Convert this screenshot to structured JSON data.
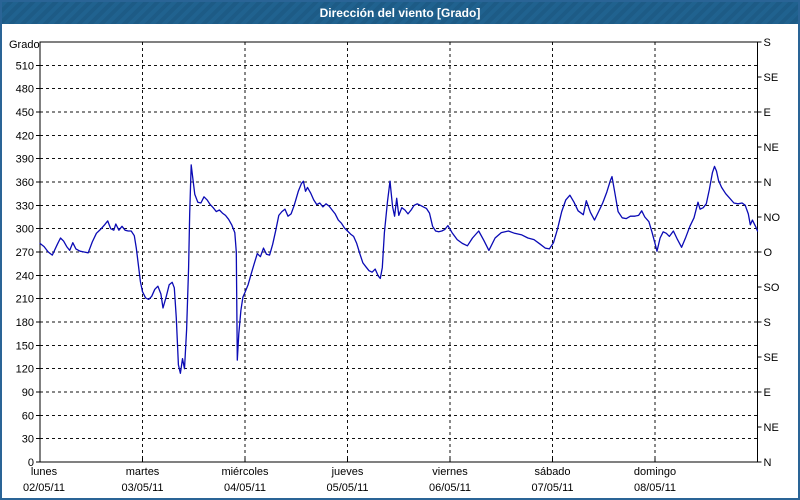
{
  "title": "Dirección del viento [Grado]",
  "colors": {
    "titlebar": "#1E5F8E",
    "frame_border": "#2A6496",
    "background": "#FFFFFF",
    "grid": "#111111",
    "axis": "#000000",
    "text": "#000000",
    "title_text": "#FFFFFF",
    "line": "#0B0BB5"
  },
  "chart_data": {
    "type": "line",
    "title": "Dirección del viento [Grado]",
    "ylabel_left": "Grado",
    "grid": "dashed",
    "ylim": [
      0,
      540
    ],
    "y_left_ticks": [
      0,
      30,
      60,
      90,
      120,
      150,
      180,
      210,
      240,
      270,
      300,
      330,
      360,
      390,
      420,
      450,
      480,
      510
    ],
    "y_right_ticks": [
      {
        "value": 0,
        "label": "N"
      },
      {
        "value": 45,
        "label": "NE"
      },
      {
        "value": 90,
        "label": "E"
      },
      {
        "value": 135,
        "label": "SE"
      },
      {
        "value": 180,
        "label": "S"
      },
      {
        "value": 225,
        "label": "SO"
      },
      {
        "value": 270,
        "label": "O"
      },
      {
        "value": 315,
        "label": "NO"
      },
      {
        "value": 360,
        "label": "N"
      },
      {
        "value": 405,
        "label": "NE"
      },
      {
        "value": 450,
        "label": "E"
      },
      {
        "value": 495,
        "label": "SE"
      },
      {
        "value": 540,
        "label": "S"
      }
    ],
    "x_days": [
      {
        "name": "lunes",
        "date": "02/05/11"
      },
      {
        "name": "martes",
        "date": "03/05/11"
      },
      {
        "name": "miércoles",
        "date": "04/05/11"
      },
      {
        "name": "jueves",
        "date": "05/05/11"
      },
      {
        "name": "viernes",
        "date": "06/05/11"
      },
      {
        "name": "sábado",
        "date": "07/05/11"
      },
      {
        "name": "domingo",
        "date": "08/05/11"
      }
    ],
    "xlim_days": [
      0,
      7
    ],
    "series": [
      {
        "name": "Dirección del viento",
        "color": "#0B0BB5",
        "points": [
          [
            0.0,
            281
          ],
          [
            0.04,
            277
          ],
          [
            0.08,
            270
          ],
          [
            0.12,
            266
          ],
          [
            0.17,
            280
          ],
          [
            0.2,
            288
          ],
          [
            0.23,
            284
          ],
          [
            0.26,
            277
          ],
          [
            0.29,
            272
          ],
          [
            0.32,
            282
          ],
          [
            0.35,
            274
          ],
          [
            0.39,
            271
          ],
          [
            0.43,
            270
          ],
          [
            0.47,
            269
          ],
          [
            0.51,
            283
          ],
          [
            0.55,
            294
          ],
          [
            0.59,
            299
          ],
          [
            0.63,
            305
          ],
          [
            0.66,
            310
          ],
          [
            0.69,
            300
          ],
          [
            0.72,
            298
          ],
          [
            0.74,
            306
          ],
          [
            0.77,
            298
          ],
          [
            0.8,
            303
          ],
          [
            0.83,
            298
          ],
          [
            0.86,
            297
          ],
          [
            0.89,
            297
          ],
          [
            0.92,
            291
          ],
          [
            0.94,
            275
          ],
          [
            0.96,
            253
          ],
          [
            0.98,
            232
          ],
          [
            1.0,
            219
          ],
          [
            1.03,
            211
          ],
          [
            1.06,
            209
          ],
          [
            1.09,
            213
          ],
          [
            1.12,
            222
          ],
          [
            1.15,
            226
          ],
          [
            1.18,
            216
          ],
          [
            1.2,
            198
          ],
          [
            1.23,
            212
          ],
          [
            1.26,
            228
          ],
          [
            1.29,
            231
          ],
          [
            1.31,
            224
          ],
          [
            1.33,
            185
          ],
          [
            1.35,
            125
          ],
          [
            1.37,
            114
          ],
          [
            1.39,
            133
          ],
          [
            1.41,
            120
          ],
          [
            1.43,
            170
          ],
          [
            1.45,
            250
          ],
          [
            1.46,
            320
          ],
          [
            1.475,
            382
          ],
          [
            1.49,
            366
          ],
          [
            1.51,
            344
          ],
          [
            1.54,
            334
          ],
          [
            1.57,
            333
          ],
          [
            1.6,
            341
          ],
          [
            1.63,
            337
          ],
          [
            1.66,
            331
          ],
          [
            1.69,
            327
          ],
          [
            1.72,
            322
          ],
          [
            1.75,
            324
          ],
          [
            1.78,
            320
          ],
          [
            1.81,
            317
          ],
          [
            1.84,
            312
          ],
          [
            1.87,
            305
          ],
          [
            1.9,
            295
          ],
          [
            1.915,
            270
          ],
          [
            1.925,
            131
          ],
          [
            1.94,
            165
          ],
          [
            1.96,
            195
          ],
          [
            1.98,
            212
          ],
          [
            2.0,
            218
          ],
          [
            2.03,
            228
          ],
          [
            2.06,
            242
          ],
          [
            2.09,
            255
          ],
          [
            2.12,
            268
          ],
          [
            2.15,
            264
          ],
          [
            2.18,
            275
          ],
          [
            2.21,
            267
          ],
          [
            2.24,
            266
          ],
          [
            2.27,
            280
          ],
          [
            2.3,
            298
          ],
          [
            2.33,
            317
          ],
          [
            2.36,
            322
          ],
          [
            2.39,
            325
          ],
          [
            2.42,
            316
          ],
          [
            2.45,
            319
          ],
          [
            2.48,
            330
          ],
          [
            2.52,
            348
          ],
          [
            2.55,
            358
          ],
          [
            2.57,
            361
          ],
          [
            2.59,
            348
          ],
          [
            2.61,
            353
          ],
          [
            2.64,
            346
          ],
          [
            2.67,
            337
          ],
          [
            2.7,
            331
          ],
          [
            2.73,
            333
          ],
          [
            2.76,
            328
          ],
          [
            2.79,
            332
          ],
          [
            2.82,
            329
          ],
          [
            2.85,
            324
          ],
          [
            2.88,
            319
          ],
          [
            2.91,
            311
          ],
          [
            2.94,
            307
          ],
          [
            2.97,
            301
          ],
          [
            3.0,
            297
          ],
          [
            3.03,
            293
          ],
          [
            3.06,
            290
          ],
          [
            3.09,
            281
          ],
          [
            3.12,
            268
          ],
          [
            3.15,
            256
          ],
          [
            3.18,
            251
          ],
          [
            3.21,
            246
          ],
          [
            3.24,
            244
          ],
          [
            3.27,
            248
          ],
          [
            3.3,
            239
          ],
          [
            3.32,
            236
          ],
          [
            3.34,
            250
          ],
          [
            3.36,
            295
          ],
          [
            3.39,
            335
          ],
          [
            3.415,
            361
          ],
          [
            3.44,
            328
          ],
          [
            3.46,
            316
          ],
          [
            3.48,
            339
          ],
          [
            3.5,
            317
          ],
          [
            3.53,
            327
          ],
          [
            3.56,
            324
          ],
          [
            3.59,
            319
          ],
          [
            3.62,
            324
          ],
          [
            3.65,
            330
          ],
          [
            3.68,
            332
          ],
          [
            3.71,
            330
          ],
          [
            3.74,
            328
          ],
          [
            3.77,
            326
          ],
          [
            3.8,
            320
          ],
          [
            3.83,
            303
          ],
          [
            3.86,
            297
          ],
          [
            3.89,
            296
          ],
          [
            3.92,
            297
          ],
          [
            3.95,
            299
          ],
          [
            3.98,
            304
          ],
          [
            4.02,
            295
          ],
          [
            4.07,
            286
          ],
          [
            4.12,
            281
          ],
          [
            4.17,
            278
          ],
          [
            4.22,
            288
          ],
          [
            4.28,
            297
          ],
          [
            4.33,
            285
          ],
          [
            4.38,
            272
          ],
          [
            4.44,
            288
          ],
          [
            4.5,
            295
          ],
          [
            4.57,
            297
          ],
          [
            4.63,
            294
          ],
          [
            4.7,
            292
          ],
          [
            4.76,
            288
          ],
          [
            4.82,
            286
          ],
          [
            4.88,
            280
          ],
          [
            4.93,
            275
          ],
          [
            4.97,
            274
          ],
          [
            5.01,
            282
          ],
          [
            5.05,
            300
          ],
          [
            5.09,
            322
          ],
          [
            5.13,
            337
          ],
          [
            5.17,
            343
          ],
          [
            5.21,
            334
          ],
          [
            5.25,
            323
          ],
          [
            5.3,
            318
          ],
          [
            5.33,
            336
          ],
          [
            5.37,
            321
          ],
          [
            5.41,
            311
          ],
          [
            5.45,
            322
          ],
          [
            5.49,
            333
          ],
          [
            5.53,
            347
          ],
          [
            5.565,
            362
          ],
          [
            5.58,
            367
          ],
          [
            5.61,
            345
          ],
          [
            5.64,
            322
          ],
          [
            5.68,
            314
          ],
          [
            5.72,
            313
          ],
          [
            5.76,
            316
          ],
          [
            5.8,
            316
          ],
          [
            5.84,
            317
          ],
          [
            5.87,
            323
          ],
          [
            5.9,
            315
          ],
          [
            5.94,
            309
          ],
          [
            5.97,
            296
          ],
          [
            6.0,
            281
          ],
          [
            6.02,
            271
          ],
          [
            6.05,
            288
          ],
          [
            6.08,
            296
          ],
          [
            6.11,
            294
          ],
          [
            6.14,
            290
          ],
          [
            6.18,
            297
          ],
          [
            6.22,
            286
          ],
          [
            6.26,
            276
          ],
          [
            6.3,
            289
          ],
          [
            6.34,
            303
          ],
          [
            6.38,
            314
          ],
          [
            6.42,
            334
          ],
          [
            6.44,
            325
          ],
          [
            6.47,
            327
          ],
          [
            6.5,
            332
          ],
          [
            6.53,
            350
          ],
          [
            6.56,
            372
          ],
          [
            6.58,
            380
          ],
          [
            6.6,
            374
          ],
          [
            6.62,
            362
          ],
          [
            6.65,
            353
          ],
          [
            6.69,
            345
          ],
          [
            6.73,
            339
          ],
          [
            6.77,
            333
          ],
          [
            6.81,
            332
          ],
          [
            6.85,
            333
          ],
          [
            6.88,
            330
          ],
          [
            6.91,
            319
          ],
          [
            6.93,
            305
          ],
          [
            6.95,
            311
          ],
          [
            6.98,
            303
          ],
          [
            7.0,
            297
          ]
        ]
      }
    ]
  }
}
